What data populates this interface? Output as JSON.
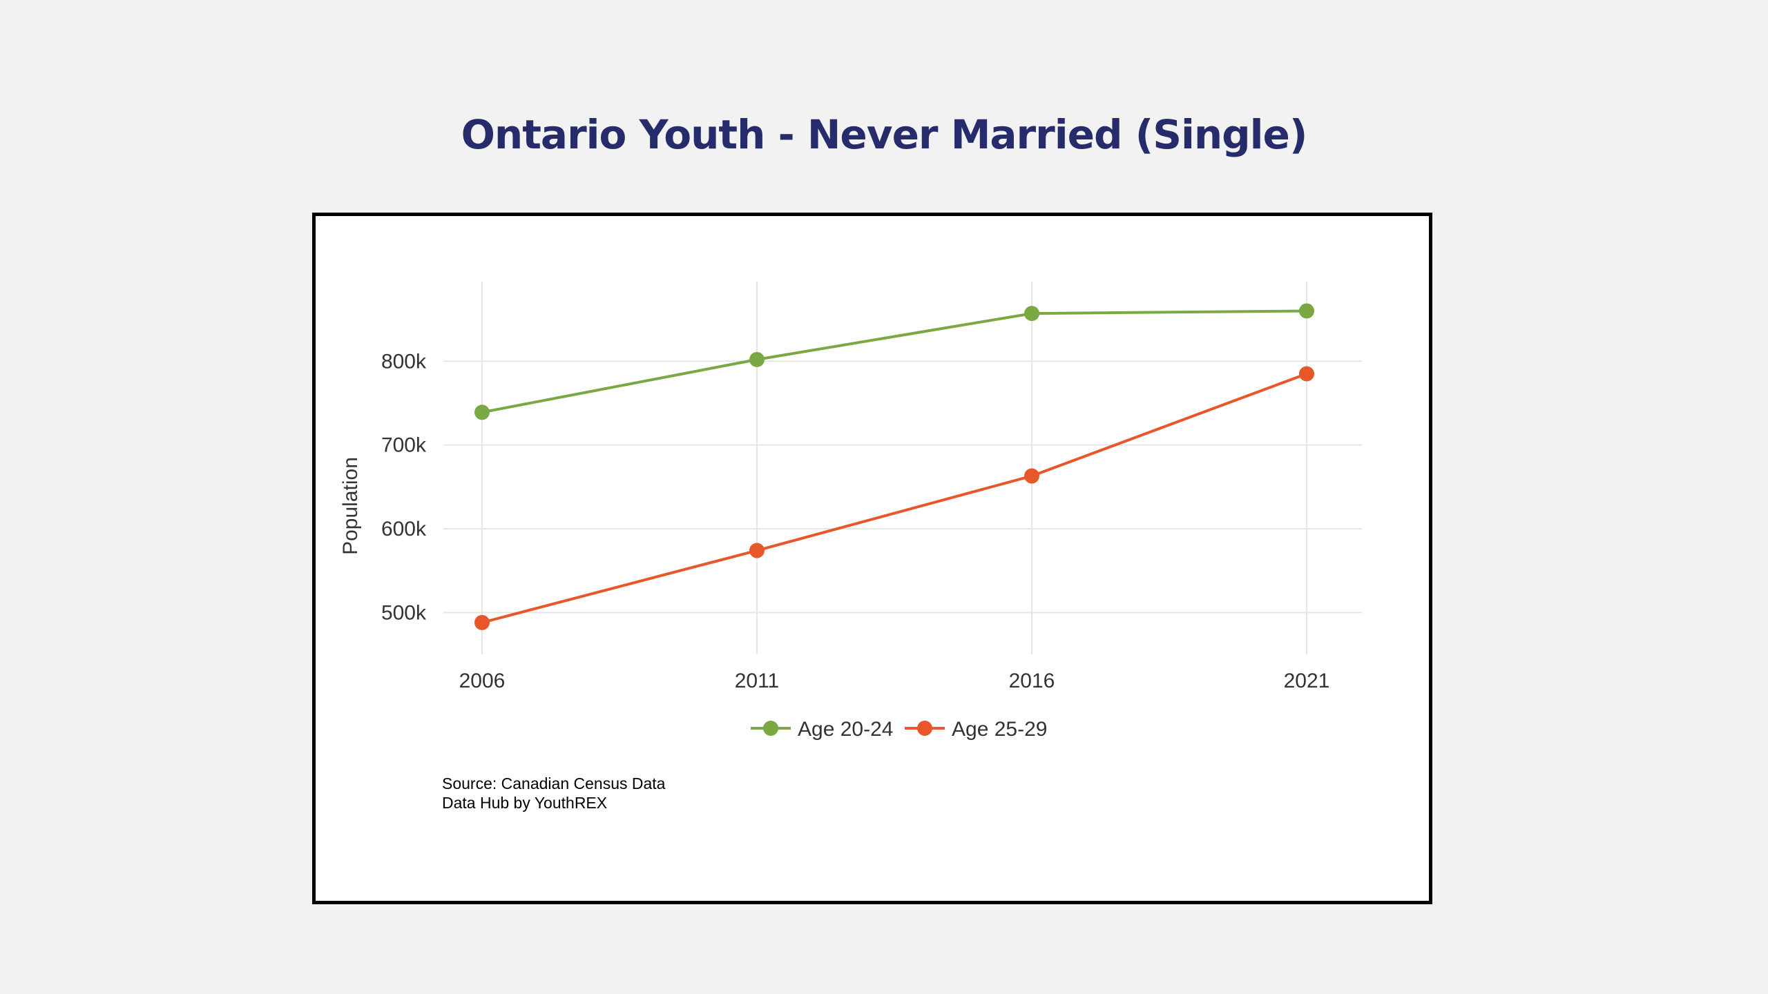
{
  "title": "Ontario Youth - Never Married (Single)",
  "source": {
    "line1": "Source: Canadian Census Data",
    "line2": "Data Hub by YouthREX"
  },
  "chart_data": {
    "type": "line",
    "x": [
      2006,
      2011,
      2016,
      2021
    ],
    "xtick_labels": [
      "2006",
      "2011",
      "2016",
      "2021"
    ],
    "ylabel": "Population",
    "ylim": [
      450000,
      895000
    ],
    "yticks": [
      500000,
      600000,
      700000,
      800000
    ],
    "ytick_labels": [
      "500k",
      "600k",
      "700k",
      "800k"
    ],
    "grid": true,
    "legend_position": "bottom",
    "series": [
      {
        "name": "Age 20-24",
        "color": "#7aa843",
        "values": [
          739000,
          802000,
          857000,
          860000
        ]
      },
      {
        "name": "Age 25-29",
        "color": "#e8572a",
        "values": [
          488000,
          574000,
          663000,
          785000
        ]
      }
    ]
  }
}
